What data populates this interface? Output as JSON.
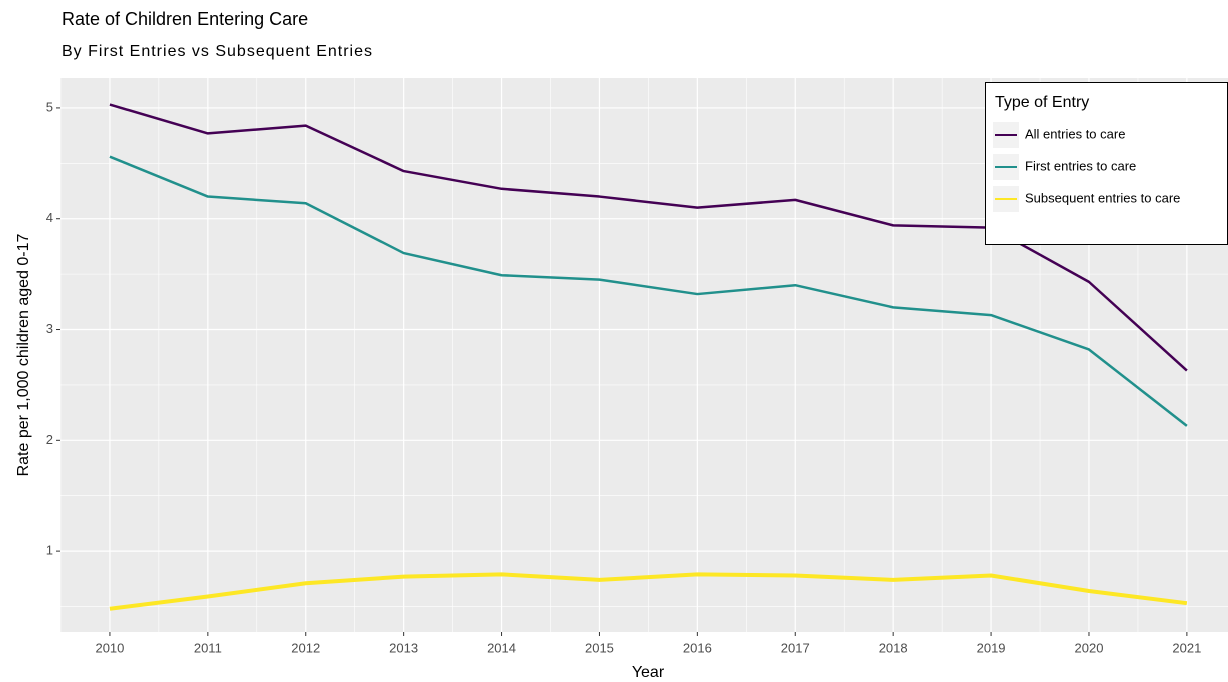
{
  "chart_data": {
    "type": "line",
    "title": "Rate of Children Entering Care",
    "subtitle": "By First Entries vs Subsequent Entries",
    "x_label": "Year",
    "y_label": "Rate per 1,000 children aged 0-17",
    "x": [
      2010,
      2011,
      2012,
      2013,
      2014,
      2015,
      2016,
      2017,
      2018,
      2019,
      2020,
      2021
    ],
    "series": [
      {
        "name": "All entries to care",
        "color": "#440154",
        "values": [
          5.03,
          4.77,
          4.84,
          4.43,
          4.27,
          4.2,
          4.1,
          4.17,
          3.94,
          3.92,
          3.43,
          2.63
        ]
      },
      {
        "name": "First entries to care",
        "color": "#21908C",
        "values": [
          4.56,
          4.2,
          4.14,
          3.69,
          3.49,
          3.45,
          3.32,
          3.4,
          3.2,
          3.13,
          2.82,
          2.13
        ]
      },
      {
        "name": "Subsequent entries to care",
        "color": "#FDE725",
        "values": [
          0.48,
          0.59,
          0.71,
          0.77,
          0.79,
          0.74,
          0.79,
          0.78,
          0.74,
          0.78,
          0.64,
          0.53
        ]
      }
    ],
    "xlim": [
      2009.49,
      2021.42
    ],
    "xticks": [
      2010,
      2011,
      2012,
      2013,
      2014,
      2015,
      2016,
      2017,
      2018,
      2019,
      2020,
      2021
    ],
    "ylim": [
      0.27,
      5.27
    ],
    "yticks": [
      1,
      2,
      3,
      4,
      5
    ],
    "grid": true,
    "legend_title": "Type of Entry",
    "legend_position": "top-right"
  }
}
